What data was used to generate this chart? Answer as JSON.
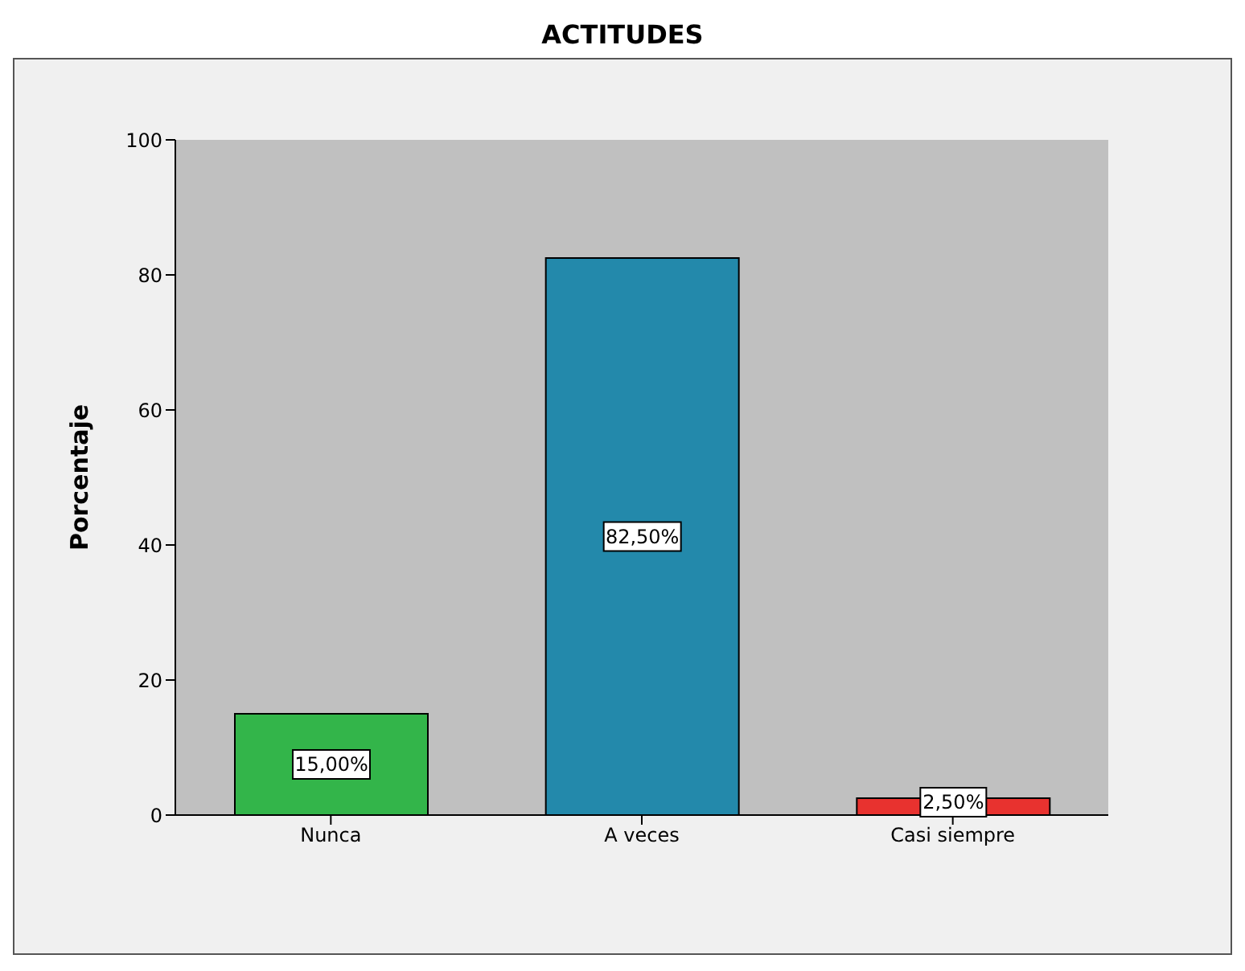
{
  "chart_data": {
    "type": "bar",
    "title": "ACTITUDES",
    "ylabel": "Porcentaje",
    "categories": [
      "Nunca",
      "A veces",
      "Casi siempre"
    ],
    "values": [
      15,
      82.5,
      2.5
    ],
    "colors": [
      "#33b54a",
      "#2389ab",
      "#e8322f"
    ],
    "value_labels": [
      "15,00%",
      "82,50%",
      "2,50%"
    ],
    "ylim": [
      0,
      100
    ],
    "yticks": [
      0,
      20,
      40,
      60,
      80,
      100
    ]
  }
}
